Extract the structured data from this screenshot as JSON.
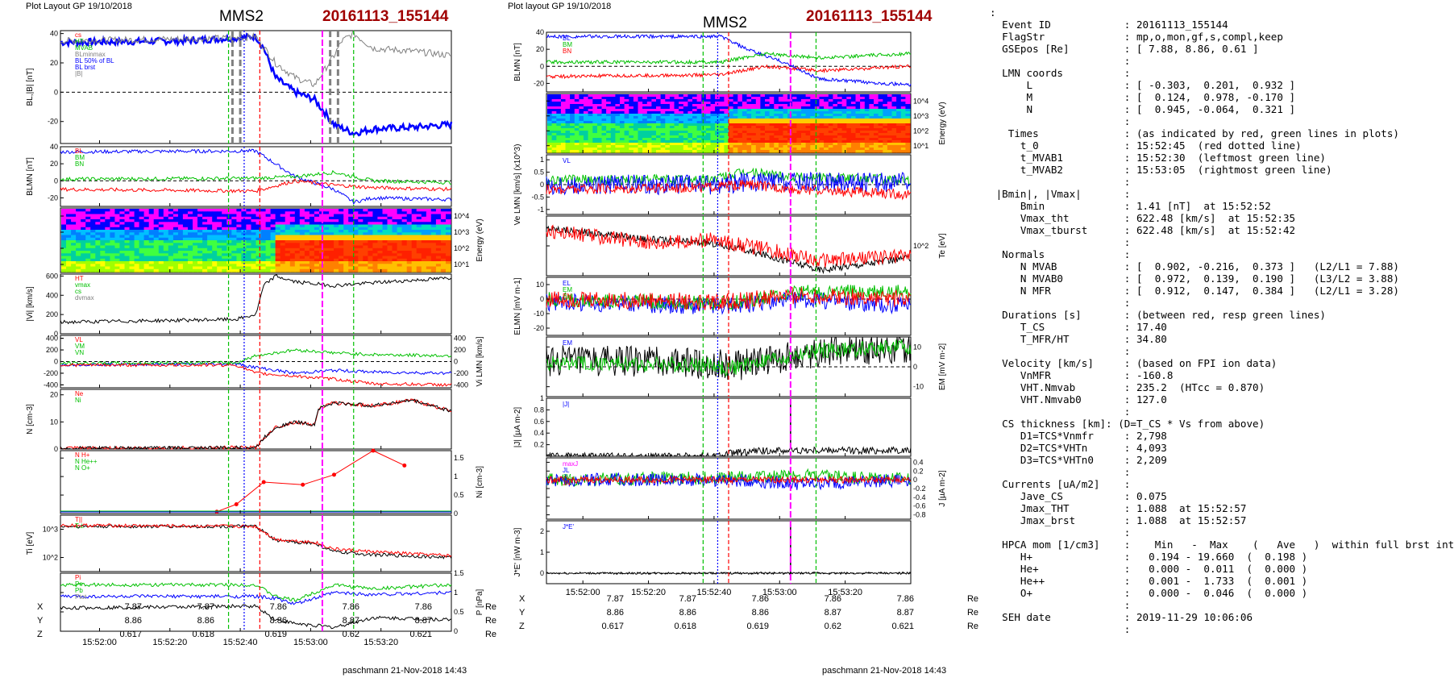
{
  "left_plot": {
    "header": "Plot Layout GP 19/10/2018",
    "spacecraft": "MMS2",
    "event": "20161113_155144",
    "footer": "paschmann 21-Nov-2018 14:43"
  },
  "right_plot": {
    "header": "Plot layout GP 19/10/2018",
    "spacecraft": "MMS2",
    "event": "20161113_155144",
    "footer": "paschmann 21-Nov-2018 14:43"
  },
  "time_ticks": [
    "15:52:00",
    "15:52:20",
    "15:52:40",
    "15:53:00",
    "15:53:20"
  ],
  "coord_table": {
    "rows": [
      {
        "label": "X",
        "values": [
          "7.87",
          "7.87",
          "7.86",
          "7.86",
          "7.86"
        ],
        "unit": "Re"
      },
      {
        "label": "Y",
        "values": [
          "8.86",
          "8.86",
          "8.86",
          "8.87",
          "8.87"
        ],
        "unit": "Re"
      },
      {
        "label": "Z",
        "values": [
          "0.617",
          "0.618",
          "0.619",
          "0.62",
          "0.621"
        ],
        "unit": "Re"
      }
    ]
  },
  "colors": {
    "red": "#ff0000",
    "green": "#00c000",
    "blue": "#0000ff",
    "magenta": "#ff00ff",
    "black": "#000000",
    "gray": "#808080",
    "title_red": "#a00000"
  },
  "info_lines": [
    ":",
    "  Event ID            : 20161113_155144",
    "  FlagStr             : mp,o,mon,gf,s,compl,keep",
    "  GSEpos [Re]         : [ 7.88, 8.86, 0.61 ]",
    "                      :",
    "  LMN coords          :",
    "      L               : [ -0.303,  0.201,  0.932 ]",
    "      M               : [  0.124,  0.978, -0.170 ]",
    "      N               : [  0.945, -0.064,  0.321 ]",
    "                      :",
    "   Times              : (as indicated by red, green lines in plots)",
    "     t_0              : 15:52:45  (red dotted line)",
    "     t_MVAB1          : 15:52:30  (leftmost green line)",
    "     t_MVAB2          : 15:53:05  (rightmost green line)",
    "                      :",
    " |Bmin|, |Vmax|       :",
    "     Bmin             : 1.41 [nT]  at 15:52:52",
    "     Vmax_tht         : 622.48 [km/s]  at 15:52:35",
    "     Vmax_tburst      : 622.48 [km/s]  at 15:52:42",
    "                      :",
    "  Normals             :",
    "     N MVAB           : [  0.902, -0.216,  0.373 ]   (L2/L1 = 7.88)",
    "     N MVAB0          : [  0.972,  0.139,  0.190 ]   (L3/L2 = 3.88)",
    "     N MFR            : [  0.912,  0.147,  0.384 ]   (L2/L1 = 3.28)",
    "                      :",
    "  Durations [s]       : (between red, resp green lines)",
    "     T_CS             : 17.40",
    "     T_MFR/HT         : 34.80",
    "                      :",
    "  Velocity [km/s]     : (based on FPI ion data)",
    "     VnMFR            : -160.8",
    "     VHT.Nmvab        : 235.2  (HTcc = 0.870)",
    "     VHT.Nmvab0       : 127.0",
    "                      :",
    "  CS thickness [km]: (D=T_CS * Vs from above)",
    "     D1=TCS*Vnmfr     : 2,798",
    "     D2=TCS*VHTn      : 4,093",
    "     D3=TCS*VHTn0     : 2,209",
    "                      :",
    "  Currents [uA/m2]    :",
    "     Jave_CS          : 0.075",
    "     Jmax_THT         : 1.088  at 15:52:57",
    "     Jmax_brst        : 1.088  at 15:52:57",
    "                      :",
    "  HPCA mom [1/cm3]    :    Min   -  Max    (   Ave   )  within full brst int",
    "     H+               :   0.194 - 19.660  (  0.198 )",
    "     He+              :   0.000 -  0.011  (  0.000 )",
    "     He++             :   0.001 -  1.733  (  0.001 )",
    "     O+               :   0.000 -  0.046  (  0.000 )",
    "                      :",
    "  SEH date            : 2019-11-29 10:06:06",
    "                      :"
  ],
  "chart_data": [
    {
      "type": "line",
      "title": "MMS2 20161113_155144",
      "x_range": [
        "15:51:44",
        "15:53:34"
      ],
      "x_ticks": [
        "15:52:00",
        "15:52:20",
        "15:52:40",
        "15:53:00",
        "15:53:20"
      ],
      "marker_lines": {
        "green": [
          "15:52:30",
          "15:53:05"
        ],
        "red": [
          "15:52:45",
          "15:52:40"
        ],
        "magenta": "15:52:57",
        "blue": "15:52:35"
      },
      "panels": [
        {
          "id": "L1",
          "ylabel": "BL,|B| [nT]",
          "ylim": [
            -35,
            42
          ],
          "ticks": [
            40,
            20,
            0,
            -20
          ],
          "legend": [
            "cs",
            "HT",
            "MVAB",
            "BLminmax",
            "BL 50% of BL",
            "BL brst",
            "|B|"
          ],
          "series": [
            {
              "name": "BL",
              "color": "#0000ff",
              "x": [
                0,
                0.3,
                0.45,
                0.5,
                0.52,
                0.55,
                0.6,
                0.65,
                0.7,
                0.75,
                0.8,
                0.9,
                1
              ],
              "y": [
                34,
                35,
                37,
                38,
                30,
                10,
                0,
                -5,
                -22,
                -28,
                -25,
                -24,
                -22
              ]
            },
            {
              "name": "|B|",
              "color": "#808080",
              "x": [
                0,
                0.45,
                0.5,
                0.55,
                0.6,
                0.65,
                0.7,
                0.72,
                0.75,
                0.8,
                0.9,
                1
              ],
              "y": [
                35,
                37,
                38,
                20,
                10,
                5,
                25,
                35,
                40,
                30,
                28,
                25
              ]
            }
          ]
        },
        {
          "id": "L2",
          "ylabel": "BLMN [nT]",
          "ylim": [
            -30,
            40
          ],
          "ticks": [
            40,
            20,
            0,
            -20
          ],
          "legend": [
            "BL",
            "BM",
            "BN"
          ],
          "series": [
            {
              "name": "BL",
              "color": "#0000ff",
              "x": [
                0,
                0.5,
                0.55,
                0.6,
                0.7,
                0.75,
                0.8,
                1
              ],
              "y": [
                34,
                35,
                20,
                5,
                -10,
                -25,
                -20,
                -22
              ]
            },
            {
              "name": "BM",
              "color": "#00c000",
              "x": [
                0,
                0.5,
                0.6,
                0.7,
                0.8,
                1
              ],
              "y": [
                2,
                3,
                5,
                10,
                0,
                -2
              ]
            },
            {
              "name": "BN",
              "color": "#ff0000",
              "x": [
                0,
                0.5,
                0.6,
                0.7,
                0.8,
                1
              ],
              "y": [
                -10,
                -12,
                0,
                -5,
                -8,
                -10
              ]
            }
          ]
        },
        {
          "id": "L3",
          "ylabel": "Energy (eV)",
          "type": "heatmap",
          "ticks": [
            "10^4",
            "10^3",
            "10^2",
            "10^1"
          ]
        },
        {
          "id": "L4",
          "ylabel": "|Vi| [km/s]",
          "ylim": [
            0,
            620
          ],
          "ticks": [
            600,
            400,
            200,
            0
          ],
          "legend": [
            "HT",
            "vmax",
            "cs",
            "dvmax"
          ],
          "series": [
            {
              "name": "|Vi|",
              "color": "#000000",
              "x": [
                0,
                0.3,
                0.45,
                0.5,
                0.52,
                0.55,
                0.6,
                0.7,
                0.8,
                1
              ],
              "y": [
                120,
                140,
                150,
                200,
                500,
                600,
                540,
                500,
                530,
                580
              ]
            }
          ]
        },
        {
          "id": "L5",
          "ylabel": "Vi LMN [km/s]",
          "ylim": [
            -450,
            450
          ],
          "ticks": [
            400,
            200,
            0,
            -200,
            -400
          ],
          "legend": [
            "VL",
            "VM",
            "VN"
          ],
          "series": [
            {
              "name": "VL",
              "color": "#0000ff",
              "x": [
                0,
                0.45,
                0.5,
                0.6,
                0.7,
                0.8,
                1
              ],
              "y": [
                -50,
                -40,
                -100,
                -200,
                -150,
                -180,
                -200
              ]
            },
            {
              "name": "VM",
              "color": "#00c000",
              "x": [
                0,
                0.45,
                0.5,
                0.6,
                0.7,
                0.8,
                1
              ],
              "y": [
                -30,
                -20,
                100,
                200,
                150,
                120,
                100
              ]
            },
            {
              "name": "VN",
              "color": "#ff0000",
              "x": [
                0,
                0.45,
                0.5,
                0.6,
                0.7,
                0.8,
                1
              ],
              "y": [
                -60,
                -60,
                -200,
                -250,
                -300,
                -380,
                -400
              ]
            }
          ]
        },
        {
          "id": "L6",
          "ylabel": "N [cm-3]",
          "ylim": [
            0,
            22
          ],
          "ticks": [
            20,
            10,
            0
          ],
          "legend": [
            "Ne",
            "Ni"
          ],
          "series": [
            {
              "name": "Ne",
              "color": "#ff0000",
              "x": [
                0,
                0.5,
                0.52,
                0.55,
                0.6,
                0.65,
                0.66,
                0.7,
                0.8,
                0.9,
                1
              ],
              "y": [
                0.3,
                0.5,
                4,
                8,
                10,
                9,
                15,
                17,
                16,
                18,
                14
              ]
            },
            {
              "name": "Ni",
              "color": "#000000",
              "x": [
                0,
                0.5,
                0.52,
                0.55,
                0.6,
                0.65,
                0.66,
                0.7,
                0.8,
                0.9,
                1
              ],
              "y": [
                0.3,
                0.5,
                4,
                8,
                10,
                9,
                15,
                17,
                16,
                18,
                14
              ]
            }
          ]
        },
        {
          "id": "L7",
          "ylabel": "Ni [cm-3]",
          "ylim": [
            0,
            1.7
          ],
          "ticks": [
            1.5,
            1.0,
            0.5,
            0.0
          ],
          "legend": [
            "N H+",
            "N He++",
            "N O+"
          ],
          "series": [
            {
              "name": "N He++",
              "color": "#ff0000",
              "x": [
                0.4,
                0.45,
                0.52,
                0.62,
                0.7,
                0.8,
                0.88
              ],
              "y": [
                0.05,
                0.25,
                0.85,
                0.78,
                1.05,
                1.7,
                1.3
              ]
            }
          ]
        },
        {
          "id": "L8",
          "ylabel": "Ti [eV]",
          "ticks": [
            "10^3",
            "10^2"
          ],
          "legend": [
            "T||",
            "T⊥"
          ],
          "series": [
            {
              "name": "T||",
              "color": "#000000",
              "x": [
                0,
                0.5,
                0.55,
                0.65,
                0.7,
                0.8,
                1
              ],
              "y": [
                0.8,
                0.8,
                0.55,
                0.5,
                0.35,
                0.3,
                0.25
              ]
            },
            {
              "name": "T⊥",
              "color": "#ff0000",
              "x": [
                0,
                0.5,
                0.55,
                0.65,
                0.7,
                0.8,
                1
              ],
              "y": [
                0.82,
                0.8,
                0.57,
                0.52,
                0.4,
                0.35,
                0.28
              ]
            }
          ]
        },
        {
          "id": "L9",
          "ylabel": "P [nPa]",
          "ylim": [
            0,
            1.5
          ],
          "ticks": [
            1.5,
            1.0,
            0.5,
            0.0
          ],
          "legend": [
            "Pi",
            "Pe",
            "Pb",
            "Ptot"
          ],
          "series": [
            {
              "name": "Pb",
              "color": "#000000",
              "x": [
                0,
                0.5,
                0.55,
                0.6,
                0.7,
                0.8,
                1
              ],
              "y": [
                0.6,
                0.65,
                0.3,
                0.2,
                0.1,
                0.35,
                0.3
              ]
            },
            {
              "name": "Pi",
              "color": "#00c000",
              "x": [
                0,
                0.5,
                0.55,
                0.6,
                0.7,
                0.8,
                1
              ],
              "y": [
                1.2,
                1.2,
                0.9,
                0.8,
                1.2,
                1.1,
                1.2
              ]
            },
            {
              "name": "Ptot",
              "color": "#0000ff",
              "x": [
                0,
                0.5,
                0.55,
                0.6,
                0.7,
                0.8,
                1
              ],
              "y": [
                0.9,
                0.9,
                0.85,
                0.7,
                1.0,
                0.95,
                1.0
              ]
            }
          ]
        }
      ]
    },
    {
      "type": "line",
      "title": "MMS2 20161113_155144",
      "x_ticks": [
        "15:52:00",
        "15:52:20",
        "15:52:40",
        "15:53:00",
        "15:53:20"
      ],
      "panels": [
        {
          "id": "R1",
          "ylabel": "BLMN [nT]",
          "ylim": [
            -30,
            40
          ],
          "ticks": [
            40,
            20,
            0,
            -20
          ],
          "legend": [
            "BL",
            "BM",
            "BN"
          ]
        },
        {
          "id": "R2",
          "ylabel": "Energy (eV)",
          "type": "heatmap",
          "ticks": [
            "10^4",
            "10^3",
            "10^2",
            "10^1"
          ]
        },
        {
          "id": "R3",
          "ylabel": "Ve LMN [km/s] (x10^3)",
          "ylim": [
            -1.2,
            1.2
          ],
          "ticks": [
            1.0,
            0.5,
            0.0,
            -0.5,
            -1.0
          ],
          "legend": [
            "VL"
          ]
        },
        {
          "id": "R4",
          "ylabel": "Te [eV]",
          "ticks": [
            "10^2"
          ]
        },
        {
          "id": "R5",
          "ylabel": "ELMN [mV m-1]",
          "ylim": [
            -25,
            15
          ],
          "ticks": [
            10,
            0,
            -10,
            -20
          ],
          "legend": [
            "EL",
            "EM",
            "EN"
          ]
        },
        {
          "id": "R6",
          "ylabel": "EM [mV m-2]",
          "ylim": [
            -15,
            15
          ],
          "ticks": [
            10,
            0,
            -10
          ],
          "legend": [
            "EM"
          ]
        },
        {
          "id": "R7",
          "ylabel": "|J| [µA m-2]",
          "ylim": [
            0,
            1.0
          ],
          "ticks": [
            1.0,
            0.8,
            0.6,
            0.4,
            0.2
          ],
          "legend": [
            "|J|"
          ]
        },
        {
          "id": "R8",
          "ylabel": "J [µA m-2]",
          "ylim": [
            -0.9,
            0.5
          ],
          "ticks": [
            0.4,
            0.2,
            0.0,
            -0.2,
            -0.4,
            -0.6,
            -0.8
          ],
          "legend": [
            "maxJ",
            "JL",
            "JM",
            "JN"
          ]
        },
        {
          "id": "R9",
          "ylabel": "J*E' [nW m-3]",
          "ylim": [
            -0.5,
            2.5
          ],
          "ticks": [
            2,
            1,
            0
          ],
          "legend": [
            "J*E'"
          ]
        }
      ]
    }
  ]
}
